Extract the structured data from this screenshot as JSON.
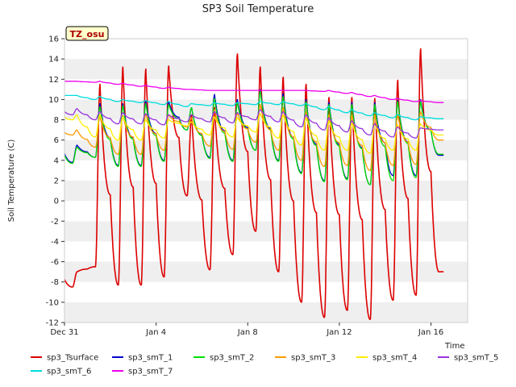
{
  "chart_data": {
    "type": "line",
    "title": "SP3 Soil Temperature",
    "xlabel": "Time",
    "ylabel": "Soil Temperature (C)",
    "site_badge": "TZ_osu",
    "xlim": [
      0,
      17.6
    ],
    "ylim": [
      -12,
      16
    ],
    "yticks": [
      -12,
      -10,
      -8,
      -6,
      -4,
      -2,
      0,
      2,
      4,
      6,
      8,
      10,
      12,
      14,
      16
    ],
    "xticks": [
      {
        "value": 0,
        "label": "Dec 31"
      },
      {
        "value": 4,
        "label": "Jan 4"
      },
      {
        "value": 8,
        "label": "Jan 8"
      },
      {
        "value": 12,
        "label": "Jan 12"
      },
      {
        "value": 16,
        "label": "Jan 16"
      }
    ],
    "grid": "horizontal bands",
    "legend_position": "bottom",
    "series": [
      {
        "name": "sp3_Tsurface",
        "color": "#dd0000",
        "daily_min": [
          -8.5,
          -6.5,
          -8.3,
          -8.3,
          -7.5,
          0.5,
          -6.8,
          -5.3,
          -3.0,
          -7.0,
          -10.0,
          -11.5,
          -10.8,
          -11.7,
          -9.8,
          -9.3,
          -7.0
        ],
        "daily_max": [
          -7.0,
          11.5,
          13.2,
          13.0,
          13.3,
          8.5,
          9.2,
          14.5,
          13.2,
          12.2,
          11.5,
          10.2,
          10.2,
          10.1,
          11.9,
          15.0,
          -7.0
        ]
      },
      {
        "name": "sp3_smT_1",
        "color": "#0000cc",
        "daily_min": [
          3.8,
          4.3,
          3.5,
          3.5,
          4.0,
          7.0,
          4.3,
          4.0,
          5.0,
          4.0,
          2.8,
          2.0,
          2.2,
          1.6,
          2.5,
          2.5,
          4.5
        ],
        "daily_max": [
          5.5,
          9.6,
          9.6,
          9.9,
          9.8,
          9.2,
          10.5,
          10.0,
          11.0,
          10.6,
          10.0,
          9.7,
          9.7,
          9.7,
          9.9,
          10.0,
          4.5
        ]
      },
      {
        "name": "sp3_smT_2",
        "color": "#00dd00",
        "daily_min": [
          3.7,
          4.3,
          3.4,
          3.4,
          3.9,
          7.0,
          4.2,
          3.9,
          5.0,
          3.9,
          2.7,
          1.9,
          2.1,
          1.6,
          2.0,
          2.3,
          4.6
        ],
        "daily_max": [
          5.3,
          9.3,
          9.4,
          9.6,
          9.5,
          9.2,
          10.1,
          9.7,
          10.8,
          10.3,
          9.8,
          9.5,
          9.5,
          9.5,
          9.8,
          9.8,
          4.6
        ]
      },
      {
        "name": "sp3_smT_3",
        "color": "#ff9900",
        "daily_min": [
          6.5,
          5.3,
          4.6,
          4.6,
          5.0,
          7.3,
          5.4,
          5.1,
          5.8,
          5.0,
          4.0,
          3.4,
          3.5,
          3.0,
          3.5,
          3.6,
          6.0
        ],
        "daily_max": [
          7.0,
          8.3,
          8.4,
          8.6,
          8.5,
          8.2,
          9.0,
          8.7,
          9.5,
          9.2,
          8.8,
          8.5,
          8.5,
          8.5,
          8.5,
          8.8,
          6.0
        ]
      },
      {
        "name": "sp3_smT_4",
        "color": "#ffee00",
        "daily_min": [
          8.0,
          6.3,
          6.0,
          6.0,
          6.2,
          7.4,
          6.5,
          6.3,
          6.8,
          6.2,
          5.5,
          5.0,
          5.0,
          4.7,
          5.0,
          5.0,
          6.5
        ],
        "daily_max": [
          8.5,
          8.5,
          8.3,
          8.0,
          8.0,
          7.8,
          8.3,
          8.2,
          8.6,
          8.5,
          8.2,
          7.9,
          7.7,
          7.6,
          7.5,
          7.6,
          6.5
        ]
      },
      {
        "name": "sp3_smT_5",
        "color": "#9933dd",
        "daily_min": [
          8.5,
          8.0,
          7.6,
          7.6,
          7.5,
          7.8,
          7.8,
          7.7,
          8.0,
          7.8,
          7.3,
          7.0,
          6.8,
          6.5,
          6.3,
          6.2,
          7.0
        ],
        "daily_max": [
          9.1,
          8.8,
          8.7,
          8.6,
          8.5,
          8.5,
          8.8,
          8.7,
          9.0,
          8.8,
          8.5,
          8.2,
          7.9,
          7.6,
          7.3,
          7.2,
          7.0
        ]
      },
      {
        "name": "sp3_smT_6",
        "color": "#00dddd",
        "daily_min": [
          10.4,
          10.0,
          9.8,
          9.7,
          9.5,
          9.3,
          9.4,
          9.4,
          9.5,
          9.5,
          9.4,
          9.0,
          8.7,
          8.4,
          8.2,
          8.0,
          8.1
        ],
        "daily_max": [
          10.4,
          10.3,
          10.0,
          9.9,
          9.8,
          9.6,
          9.7,
          9.7,
          9.8,
          9.8,
          9.6,
          9.3,
          9.0,
          8.7,
          8.5,
          8.3,
          8.1
        ]
      },
      {
        "name": "sp3_smT_7",
        "color": "#ee00ee",
        "daily_min": [
          11.8,
          11.7,
          11.5,
          11.3,
          11.1,
          11.0,
          10.9,
          10.9,
          10.9,
          10.9,
          10.9,
          10.8,
          10.6,
          10.3,
          10.0,
          9.8,
          9.7
        ],
        "daily_max": [
          11.8,
          11.8,
          11.6,
          11.4,
          11.2,
          11.0,
          10.9,
          10.9,
          10.9,
          10.9,
          10.9,
          10.9,
          10.7,
          10.4,
          10.1,
          9.9,
          9.7
        ]
      }
    ]
  }
}
